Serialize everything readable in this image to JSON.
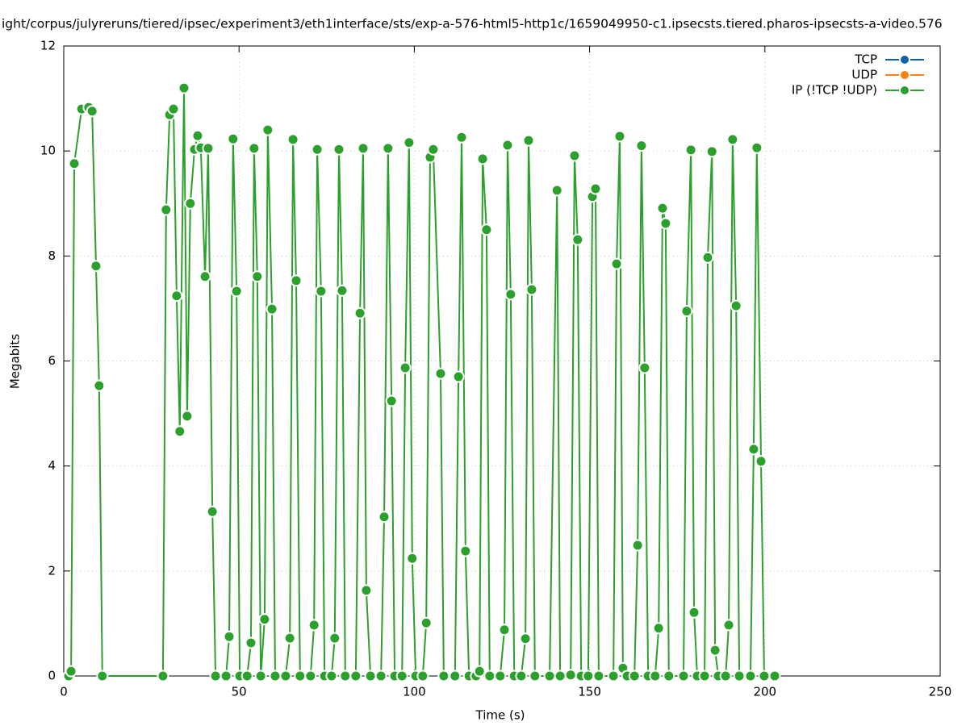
{
  "chart_data": {
    "type": "line",
    "title": "ight/corpus/julyreruns/tiered/ipsec/experiment3/eth1interface/sts/exp-a-576-html5-http1c/1659049950-c1.ipsecsts.tiered.pharos-ipsecsts-a-video.576",
    "x_label": "Time (s)",
    "y_label": "Megabits",
    "xlim": [
      0,
      250
    ],
    "xticks": [
      0,
      50,
      100,
      150,
      200,
      250
    ],
    "ylim": [
      0,
      12
    ],
    "yticks": [
      0,
      2,
      4,
      6,
      8,
      10,
      12
    ],
    "grid": true,
    "legend": "top-right",
    "series": [
      {
        "name": "TCP",
        "color": "#0a61ad",
        "x": [],
        "values": []
      },
      {
        "name": "UDP",
        "color": "#ff7f0e",
        "x": [],
        "values": []
      },
      {
        "name": "IP (!TCP  !UDP)",
        "color": "#2ca02c",
        "x": [
          1.4,
          2.1,
          3.0,
          5.1,
          7.1,
          8.1,
          9.2,
          10.1,
          11.0,
          28.3,
          29.2,
          30.2,
          31.3,
          32.2,
          33.1,
          34.3,
          35.2,
          36.1,
          37.3,
          38.2,
          39.1,
          40.3,
          41.2,
          42.4,
          43.3,
          46.3,
          47.2,
          48.3,
          49.3,
          50.2,
          52.3,
          53.4,
          54.3,
          55.2,
          56.2,
          57.3,
          58.2,
          59.4,
          60.3,
          63.3,
          64.5,
          65.4,
          66.3,
          67.4,
          70.4,
          71.4,
          72.3,
          73.4,
          74.4,
          76.4,
          77.3,
          78.5,
          79.4,
          80.3,
          83.3,
          84.5,
          85.4,
          86.3,
          87.5,
          90.5,
          91.4,
          92.5,
          93.5,
          94.4,
          96.5,
          97.4,
          98.5,
          99.4,
          100.4,
          102.4,
          103.4,
          104.5,
          105.4,
          107.5,
          108.4,
          111.6,
          112.6,
          113.5,
          114.6,
          115.6,
          117.6,
          118.6,
          119.5,
          120.6,
          121.5,
          124.5,
          125.7,
          126.6,
          127.5,
          128.5,
          130.5,
          131.7,
          132.6,
          133.5,
          134.4,
          138.6,
          140.7,
          141.6,
          144.6,
          145.7,
          146.6,
          147.6,
          149.6,
          150.8,
          151.7,
          152.6,
          156.8,
          157.7,
          158.6,
          159.5,
          160.7,
          162.8,
          163.7,
          164.8,
          165.7,
          166.7,
          168.7,
          169.7,
          170.8,
          171.7,
          172.6,
          176.8,
          177.7,
          178.9,
          179.8,
          180.7,
          182.8,
          183.7,
          184.9,
          185.8,
          186.7,
          188.8,
          189.7,
          190.8,
          191.8,
          192.7,
          195.9,
          196.8,
          197.7,
          198.9,
          199.8,
          202.8
        ],
        "values": [
          0,
          0.09,
          9.76,
          10.8,
          10.83,
          10.76,
          7.81,
          5.53,
          0,
          0,
          8.88,
          10.69,
          10.8,
          7.24,
          4.66,
          11.2,
          4.95,
          9.0,
          10.03,
          10.29,
          10.06,
          7.61,
          10.05,
          3.13,
          0,
          0,
          0.75,
          10.23,
          7.33,
          0,
          0,
          0.63,
          10.05,
          7.61,
          0,
          1.08,
          10.4,
          6.99,
          0,
          0,
          0.72,
          10.22,
          7.53,
          0,
          0,
          0.97,
          10.03,
          7.33,
          0,
          0,
          0.72,
          10.03,
          7.34,
          0,
          0,
          6.91,
          10.05,
          1.63,
          0,
          0,
          3.03,
          10.05,
          5.24,
          0,
          0,
          5.87,
          10.16,
          2.24,
          0,
          0,
          1.01,
          9.88,
          10.03,
          5.76,
          0,
          0,
          5.7,
          10.26,
          2.38,
          0,
          0,
          0.09,
          9.85,
          8.5,
          0,
          0,
          0.88,
          10.11,
          7.27,
          0,
          0,
          0.71,
          10.2,
          7.36,
          0,
          0,
          9.25,
          0,
          0.02,
          9.91,
          8.31,
          0,
          0,
          9.13,
          9.28,
          0,
          0,
          7.85,
          10.28,
          0.15,
          0,
          0,
          2.49,
          10.1,
          5.87,
          0,
          0,
          0.91,
          8.91,
          8.62,
          0,
          0,
          6.95,
          10.02,
          1.21,
          0,
          0,
          7.97,
          9.99,
          0.49,
          0,
          0,
          0.97,
          10.22,
          7.05,
          0,
          0,
          4.32,
          10.06,
          4.09,
          0,
          0
        ]
      }
    ]
  }
}
